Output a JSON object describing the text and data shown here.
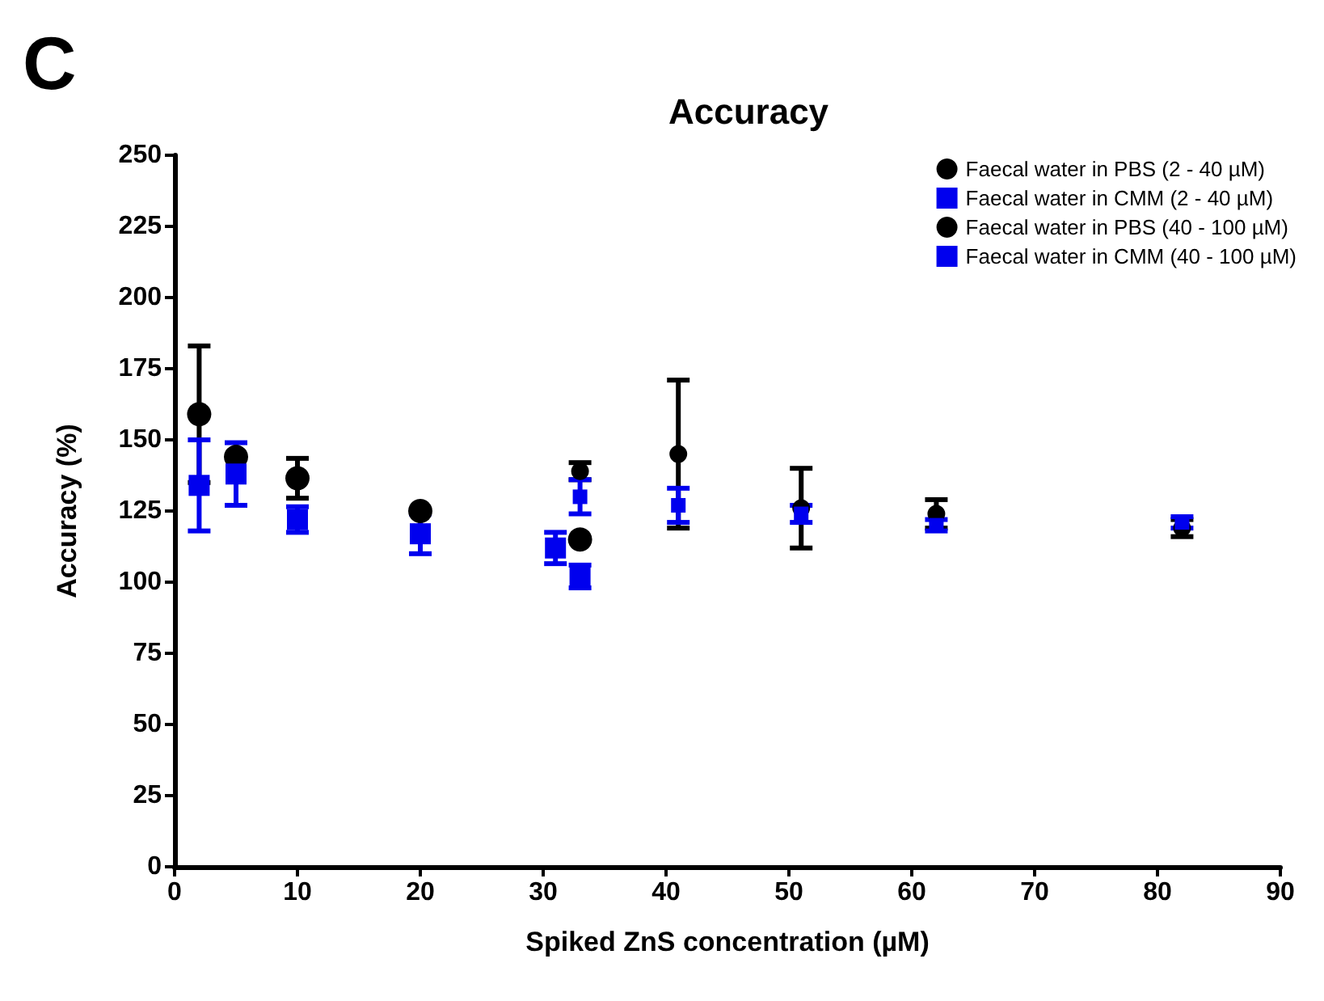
{
  "chart_data": {
    "type": "scatter",
    "title": "Accuracy",
    "xlabel": "Spiked ZnS concentration (µM)",
    "ylabel": "Accuracy (%)",
    "annotations": [
      "C"
    ],
    "xlim": [
      0,
      90
    ],
    "xticks": [
      0,
      10,
      20,
      30,
      40,
      50,
      60,
      70,
      80,
      90
    ],
    "ylim": [
      0,
      250
    ],
    "yticks": [
      0,
      25,
      50,
      75,
      100,
      125,
      150,
      175,
      200,
      225,
      250
    ],
    "grid": false,
    "legend": "top right",
    "series": [
      {
        "name": "Faecal water in PBS (2 - 40 µM)",
        "color": "#000000",
        "marker": "circle",
        "x": [
          2,
          5,
          10,
          20,
          33
        ],
        "values": [
          159,
          144,
          136.5,
          125,
          115
        ],
        "errors": [
          24,
          null,
          7,
          null,
          null
        ]
      },
      {
        "name": "Faecal water in CMM (2 - 40 µM)",
        "color": "#0000ee",
        "marker": "square",
        "x": [
          2,
          5,
          10,
          20,
          31,
          33
        ],
        "values": [
          134,
          138,
          122,
          117,
          112,
          102
        ],
        "errors": [
          16,
          11,
          4.5,
          7,
          5.5,
          4
        ]
      },
      {
        "name": "Faecal water in PBS (40 - 100 µM)",
        "color": "#000000",
        "marker": "circle",
        "x": [
          33,
          41,
          51,
          62,
          82
        ],
        "values": [
          139,
          145,
          126,
          124,
          119
        ],
        "errors": [
          3,
          26,
          14,
          5,
          3
        ]
      },
      {
        "name": "Faecal water in CMM (40 - 100 µM)",
        "color": "#0000ee",
        "marker": "square",
        "x": [
          33,
          41,
          51,
          62,
          82
        ],
        "values": [
          130,
          127,
          124,
          120,
          121
        ],
        "errors": [
          6,
          6,
          3,
          2,
          2
        ]
      }
    ]
  }
}
